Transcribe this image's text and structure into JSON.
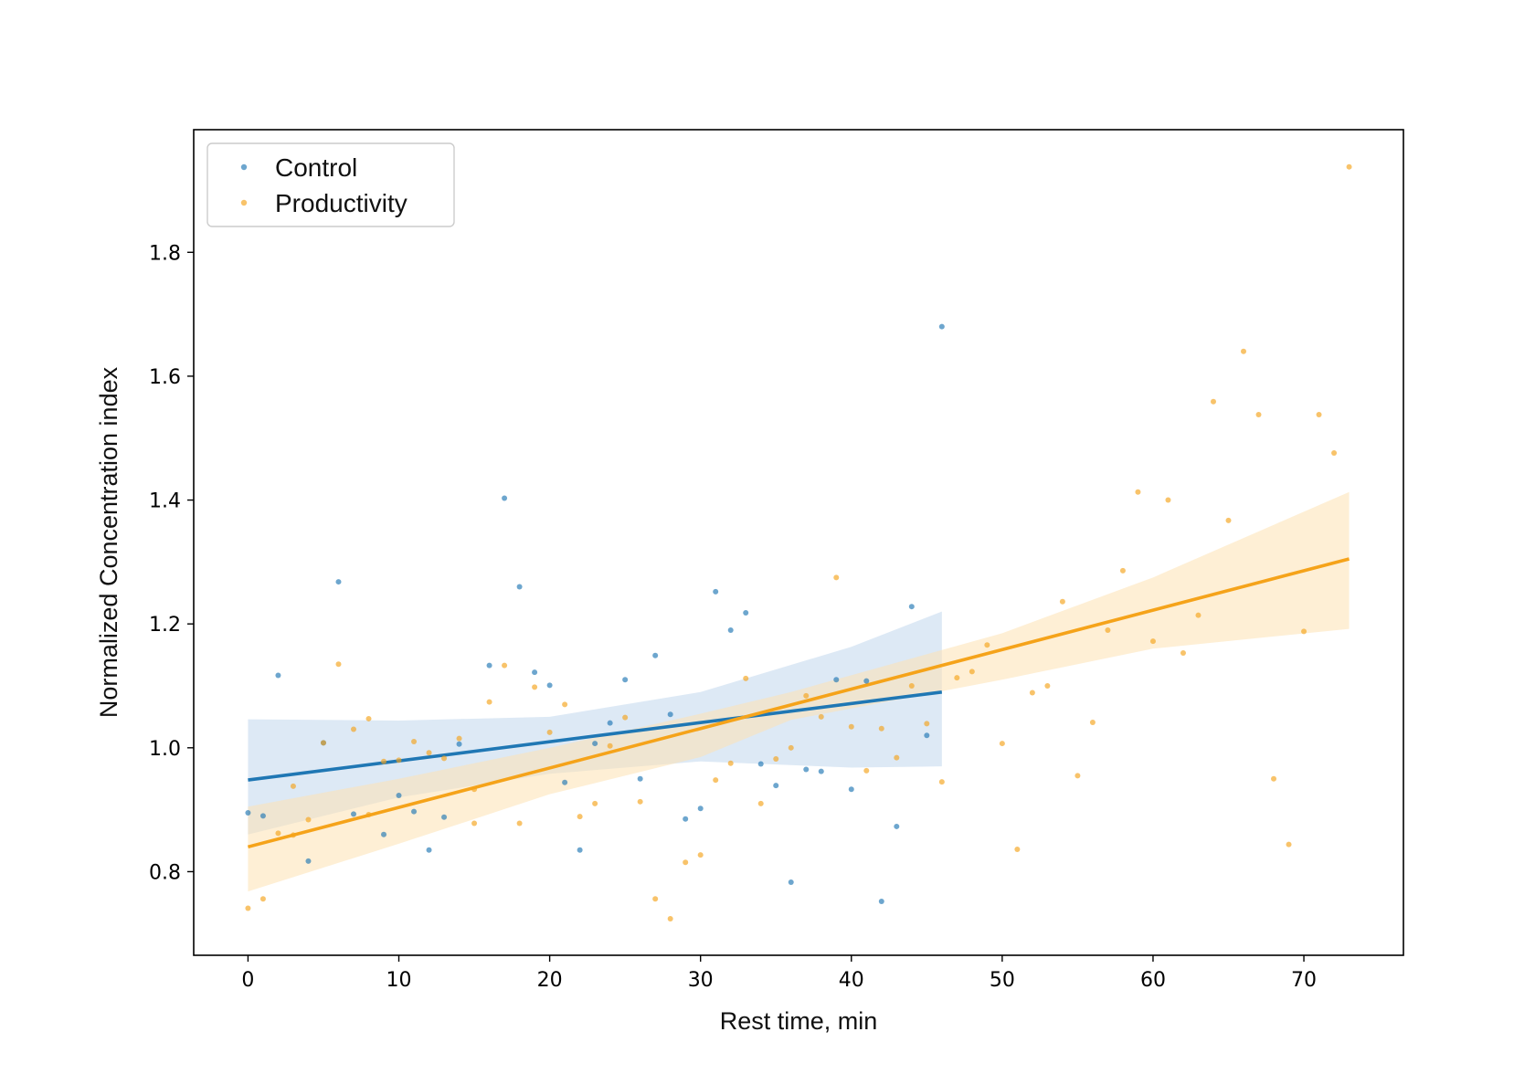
{
  "chart_data": {
    "type": "scatter",
    "xlabel": "Rest time, min",
    "ylabel": "Normalized Concentration index",
    "xlim": [
      -3.6,
      76.6
    ],
    "ylim": [
      0.665,
      1.998
    ],
    "xticks": [
      0,
      10,
      20,
      30,
      40,
      50,
      60,
      70
    ],
    "yticks": [
      0.8,
      1.0,
      1.2,
      1.4,
      1.6,
      1.8
    ],
    "xtick_labels": [
      "0",
      "10",
      "20",
      "30",
      "40",
      "50",
      "60",
      "70"
    ],
    "ytick_labels": [
      "0.8",
      "1.0",
      "1.2",
      "1.4",
      "1.6",
      "1.8"
    ],
    "grid": false,
    "legend_position": "top-left",
    "series": [
      {
        "name": "Control",
        "color": "#1f77b4",
        "points": [
          [
            0,
            0.895
          ],
          [
            1,
            0.89
          ],
          [
            2,
            1.117
          ],
          [
            4,
            0.817
          ],
          [
            5,
            1.008
          ],
          [
            6,
            1.268
          ],
          [
            7,
            0.893
          ],
          [
            9,
            0.86
          ],
          [
            10,
            0.923
          ],
          [
            11,
            0.897
          ],
          [
            12,
            0.835
          ],
          [
            13,
            0.888
          ],
          [
            14,
            1.006
          ],
          [
            16,
            1.133
          ],
          [
            17,
            1.403
          ],
          [
            18,
            1.26
          ],
          [
            19,
            1.122
          ],
          [
            20,
            1.101
          ],
          [
            21,
            0.944
          ],
          [
            22,
            0.835
          ],
          [
            23,
            1.007
          ],
          [
            24,
            1.04
          ],
          [
            25,
            1.11
          ],
          [
            26,
            0.95
          ],
          [
            27,
            1.149
          ],
          [
            28,
            1.054
          ],
          [
            29,
            0.885
          ],
          [
            30,
            0.902
          ],
          [
            31,
            1.252
          ],
          [
            32,
            1.19
          ],
          [
            33,
            1.218
          ],
          [
            34,
            0.974
          ],
          [
            35,
            0.939
          ],
          [
            36,
            0.783
          ],
          [
            37,
            0.965
          ],
          [
            38,
            0.962
          ],
          [
            39,
            1.11
          ],
          [
            40,
            0.933
          ],
          [
            41,
            1.108
          ],
          [
            42,
            0.752
          ],
          [
            43,
            0.873
          ],
          [
            44,
            1.228
          ],
          [
            45,
            1.02
          ],
          [
            46,
            1.68
          ]
        ],
        "fit": {
          "x": [
            0,
            46
          ],
          "y": [
            0.948,
            1.09
          ]
        },
        "ci_upper": [
          [
            0,
            1.046
          ],
          [
            10,
            1.044
          ],
          [
            20,
            1.05
          ],
          [
            30,
            1.09
          ],
          [
            40,
            1.163
          ],
          [
            46,
            1.22
          ]
        ],
        "ci_lower": [
          [
            0,
            0.86
          ],
          [
            10,
            0.92
          ],
          [
            20,
            0.958
          ],
          [
            30,
            0.978
          ],
          [
            40,
            0.968
          ],
          [
            46,
            0.97
          ]
        ]
      },
      {
        "name": "Productivity",
        "color": "#f5a31a",
        "points": [
          [
            0,
            0.741
          ],
          [
            1,
            0.756
          ],
          [
            2,
            0.862
          ],
          [
            3,
            0.938
          ],
          [
            3,
            0.859
          ],
          [
            4,
            0.884
          ],
          [
            5,
            1.008
          ],
          [
            6,
            1.135
          ],
          [
            7,
            1.03
          ],
          [
            8,
            1.047
          ],
          [
            8,
            0.892
          ],
          [
            9,
            0.978
          ],
          [
            10,
            0.98
          ],
          [
            11,
            1.01
          ],
          [
            12,
            0.992
          ],
          [
            13,
            0.983
          ],
          [
            14,
            1.015
          ],
          [
            15,
            0.933
          ],
          [
            15,
            0.878
          ],
          [
            16,
            1.074
          ],
          [
            17,
            1.133
          ],
          [
            18,
            0.878
          ],
          [
            19,
            1.098
          ],
          [
            20,
            1.025
          ],
          [
            21,
            1.07
          ],
          [
            22,
            0.889
          ],
          [
            23,
            0.91
          ],
          [
            24,
            1.003
          ],
          [
            25,
            1.049
          ],
          [
            26,
            0.913
          ],
          [
            27,
            0.756
          ],
          [
            28,
            0.724
          ],
          [
            29,
            0.815
          ],
          [
            30,
            0.827
          ],
          [
            31,
            0.948
          ],
          [
            32,
            0.975
          ],
          [
            33,
            1.112
          ],
          [
            34,
            0.91
          ],
          [
            35,
            0.982
          ],
          [
            36,
            1.0
          ],
          [
            37,
            1.084
          ],
          [
            38,
            1.05
          ],
          [
            39,
            1.275
          ],
          [
            40,
            1.034
          ],
          [
            41,
            0.963
          ],
          [
            42,
            1.031
          ],
          [
            43,
            0.984
          ],
          [
            44,
            1.1
          ],
          [
            45,
            1.039
          ],
          [
            46,
            0.945
          ],
          [
            47,
            1.113
          ],
          [
            48,
            1.123
          ],
          [
            49,
            1.166
          ],
          [
            50,
            1.007
          ],
          [
            51,
            0.836
          ],
          [
            52,
            1.089
          ],
          [
            53,
            1.1
          ],
          [
            54,
            1.236
          ],
          [
            55,
            0.955
          ],
          [
            56,
            1.041
          ],
          [
            57,
            1.19
          ],
          [
            58,
            1.286
          ],
          [
            59,
            1.413
          ],
          [
            60,
            1.172
          ],
          [
            61,
            1.4
          ],
          [
            62,
            1.153
          ],
          [
            63,
            1.214
          ],
          [
            64,
            1.559
          ],
          [
            65,
            1.367
          ],
          [
            66,
            1.64
          ],
          [
            67,
            1.538
          ],
          [
            68,
            0.95
          ],
          [
            69,
            0.844
          ],
          [
            70,
            1.188
          ],
          [
            71,
            1.538
          ],
          [
            72,
            1.476
          ],
          [
            73,
            1.938
          ]
        ],
        "fit": {
          "x": [
            0,
            73
          ],
          "y": [
            0.84,
            1.305
          ]
        },
        "ci_upper": [
          [
            0,
            0.905
          ],
          [
            10,
            0.95
          ],
          [
            20,
            1.0
          ],
          [
            30,
            1.055
          ],
          [
            36,
            1.09
          ],
          [
            50,
            1.185
          ],
          [
            60,
            1.275
          ],
          [
            73,
            1.413
          ]
        ],
        "ci_lower": [
          [
            0,
            0.768
          ],
          [
            10,
            0.845
          ],
          [
            20,
            0.925
          ],
          [
            30,
            0.985
          ],
          [
            36,
            1.045
          ],
          [
            50,
            1.11
          ],
          [
            60,
            1.16
          ],
          [
            73,
            1.192
          ]
        ]
      }
    ]
  }
}
